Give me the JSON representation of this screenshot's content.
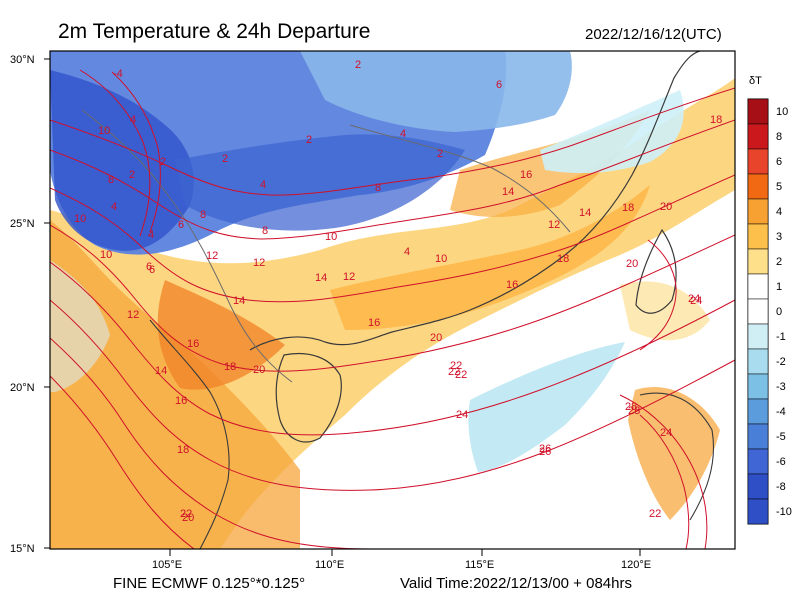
{
  "header": {
    "title": "2m Temperature & 24h Departure",
    "timestamp": "2022/12/16/12(UTC)"
  },
  "footer": {
    "model": "FINE ECMWF 0.125°*0.125°",
    "valid_time": "Valid Time:2022/12/13/00 + 084hrs"
  },
  "map": {
    "lat_labels": [
      "30°N",
      "25°N",
      "20°N",
      "15°N"
    ],
    "lon_labels": [
      "105°E",
      "110°E",
      "115°E",
      "120°E"
    ],
    "colors": {
      "coast": "#3a3a3a",
      "contour": "#d0102a"
    }
  },
  "legend": {
    "title": "δT",
    "levels": [
      {
        "label": "10",
        "color": "#a50f15"
      },
      {
        "label": "8",
        "color": "#cb181d"
      },
      {
        "label": "6",
        "color": "#e8442c"
      },
      {
        "label": "5",
        "color": "#f16913"
      },
      {
        "label": "4",
        "color": "#f7a132"
      },
      {
        "label": "3",
        "color": "#fdc04b"
      },
      {
        "label": "2",
        "color": "#fee08b"
      },
      {
        "label": "1",
        "color": "#ffffff"
      },
      {
        "label": "0",
        "color": "#ffffff"
      },
      {
        "label": "-1",
        "color": "#cfeff5"
      },
      {
        "label": "-2",
        "color": "#a8dcee"
      },
      {
        "label": "-3",
        "color": "#7cc0e6"
      },
      {
        "label": "-4",
        "color": "#5b9ddc"
      },
      {
        "label": "-5",
        "color": "#4a7fd8"
      },
      {
        "label": "-6",
        "color": "#3f66d4"
      },
      {
        "label": "-8",
        "color": "#2f4fc6"
      },
      {
        "label": "-10",
        "color": ""
      }
    ]
  },
  "contour_labels": [
    "-4",
    "4",
    "2",
    "10",
    "8",
    "2",
    "2",
    "2",
    "4",
    "6",
    "6",
    "4",
    "2",
    "4",
    "10",
    "8",
    "6",
    "12",
    "14",
    "16",
    "18",
    "20",
    "22",
    "24",
    "26",
    "28",
    "24",
    "22",
    "20",
    "18",
    "16",
    "14",
    "12",
    "10",
    "12",
    "14",
    "16",
    "18",
    "20",
    "22",
    "22",
    "24",
    "20",
    "18",
    "16",
    "14",
    "12",
    "10",
    "8",
    "6",
    "4",
    "2",
    "8",
    "4",
    "10",
    "12",
    "14",
    "16",
    "18",
    "20",
    "24",
    "22",
    "26",
    "28"
  ]
}
